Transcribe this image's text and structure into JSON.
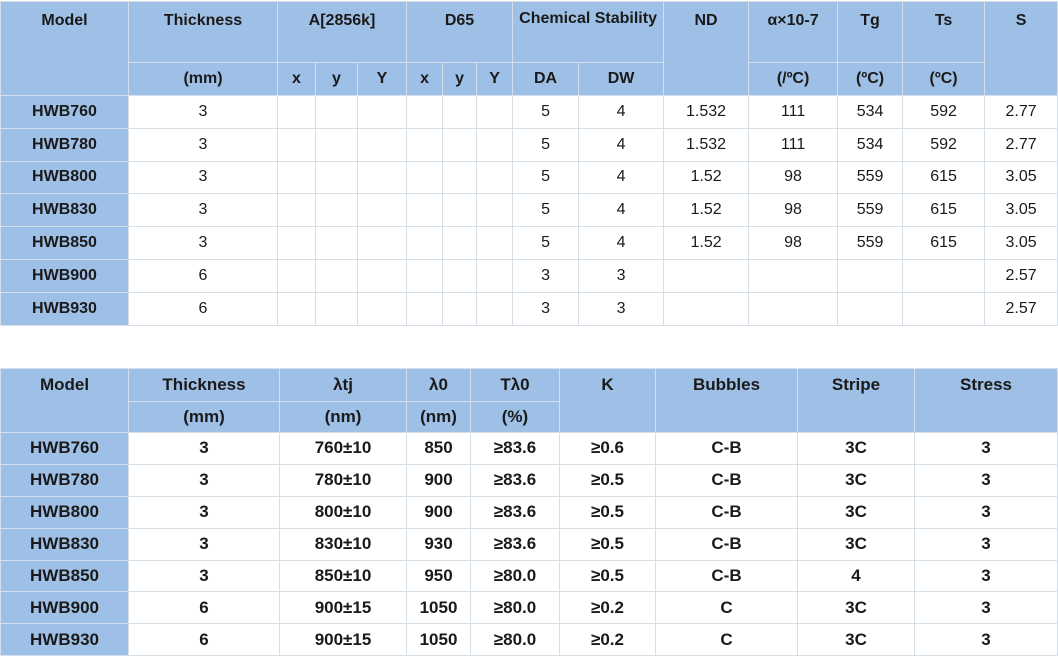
{
  "table1": {
    "headers": {
      "model": "Model",
      "thickness": "Thickness",
      "thickness_unit": "(mm)",
      "a2856k": "A[2856k]",
      "d65": "D65",
      "chem_stability": "Chemical Stability",
      "nd": "ND",
      "alpha": "α×10-7",
      "alpha_unit": "(/ºC)",
      "tg": "Tg",
      "tg_unit": "(ºC)",
      "ts": "Ts",
      "ts_unit": "(ºC)",
      "s": "S",
      "a_x": "x",
      "a_y": "y",
      "a_Y": "Y",
      "d_x": "x",
      "d_y": "y",
      "d_Y": "Y",
      "da": "DA",
      "dw": "DW"
    },
    "rows": [
      {
        "model": "HWB760",
        "thickness": "3",
        "ax": "",
        "ay": "",
        "aY": "",
        "dx": "",
        "dy": "",
        "dY": "",
        "da": "5",
        "dw": "4",
        "nd": "1.532",
        "alpha": "111",
        "tg": "534",
        "ts": "592",
        "s": "2.77"
      },
      {
        "model": "HWB780",
        "thickness": "3",
        "ax": "",
        "ay": "",
        "aY": "",
        "dx": "",
        "dy": "",
        "dY": "",
        "da": "5",
        "dw": "4",
        "nd": "1.532",
        "alpha": "111",
        "tg": "534",
        "ts": "592",
        "s": "2.77"
      },
      {
        "model": "HWB800",
        "thickness": "3",
        "ax": "",
        "ay": "",
        "aY": "",
        "dx": "",
        "dy": "",
        "dY": "",
        "da": "5",
        "dw": "4",
        "nd": "1.52",
        "alpha": "98",
        "tg": "559",
        "ts": "615",
        "s": "3.05"
      },
      {
        "model": "HWB830",
        "thickness": "3",
        "ax": "",
        "ay": "",
        "aY": "",
        "dx": "",
        "dy": "",
        "dY": "",
        "da": "5",
        "dw": "4",
        "nd": "1.52",
        "alpha": "98",
        "tg": "559",
        "ts": "615",
        "s": "3.05"
      },
      {
        "model": "HWB850",
        "thickness": "3",
        "ax": "",
        "ay": "",
        "aY": "",
        "dx": "",
        "dy": "",
        "dY": "",
        "da": "5",
        "dw": "4",
        "nd": "1.52",
        "alpha": "98",
        "tg": "559",
        "ts": "615",
        "s": "3.05"
      },
      {
        "model": "HWB900",
        "thickness": "6",
        "ax": "",
        "ay": "",
        "aY": "",
        "dx": "",
        "dy": "",
        "dY": "",
        "da": "3",
        "dw": "3",
        "nd": "",
        "alpha": "",
        "tg": "",
        "ts": "",
        "s": "2.57"
      },
      {
        "model": "HWB930",
        "thickness": "6",
        "ax": "",
        "ay": "",
        "aY": "",
        "dx": "",
        "dy": "",
        "dY": "",
        "da": "3",
        "dw": "3",
        "nd": "",
        "alpha": "",
        "tg": "",
        "ts": "",
        "s": "2.57"
      }
    ]
  },
  "table2": {
    "headers": {
      "model": "Model",
      "thickness": "Thickness",
      "thickness_unit": "(mm)",
      "ltj": "λtj",
      "ltj_unit": "(nm)",
      "l0": "λ0",
      "l0_unit": "(nm)",
      "tl0": "Tλ0",
      "tl0_unit": "(%)",
      "k": "K",
      "bubbles": "Bubbles",
      "stripe": "Stripe",
      "stress": "Stress"
    },
    "rows": [
      {
        "model": "HWB760",
        "thickness": "3",
        "ltj": "760±10",
        "l0": "850",
        "tl0": "≥83.6",
        "k": "≥0.6",
        "bubbles": "C-B",
        "stripe": "3C",
        "stress": "3"
      },
      {
        "model": "HWB780",
        "thickness": "3",
        "ltj": "780±10",
        "l0": "900",
        "tl0": "≥83.6",
        "k": "≥0.5",
        "bubbles": "C-B",
        "stripe": "3C",
        "stress": "3"
      },
      {
        "model": "HWB800",
        "thickness": "3",
        "ltj": "800±10",
        "l0": "900",
        "tl0": "≥83.6",
        "k": "≥0.5",
        "bubbles": "C-B",
        "stripe": "3C",
        "stress": "3"
      },
      {
        "model": "HWB830",
        "thickness": "3",
        "ltj": "830±10",
        "l0": "930",
        "tl0": "≥83.6",
        "k": "≥0.5",
        "bubbles": "C-B",
        "stripe": "3C",
        "stress": "3"
      },
      {
        "model": "HWB850",
        "thickness": "3",
        "ltj": "850±10",
        "l0": "950",
        "tl0": "≥80.0",
        "k": "≥0.5",
        "bubbles": "C-B",
        "stripe": "4",
        "stress": "3"
      },
      {
        "model": "HWB900",
        "thickness": "6",
        "ltj": "900±15",
        "l0": "1050",
        "tl0": "≥80.0",
        "k": "≥0.2",
        "bubbles": "C",
        "stripe": "3C",
        "stress": "3"
      },
      {
        "model": "HWB930",
        "thickness": "6",
        "ltj": "900±15",
        "l0": "1050",
        "tl0": "≥80.0",
        "k": "≥0.2",
        "bubbles": "C",
        "stripe": "3C",
        "stress": "3"
      }
    ]
  }
}
